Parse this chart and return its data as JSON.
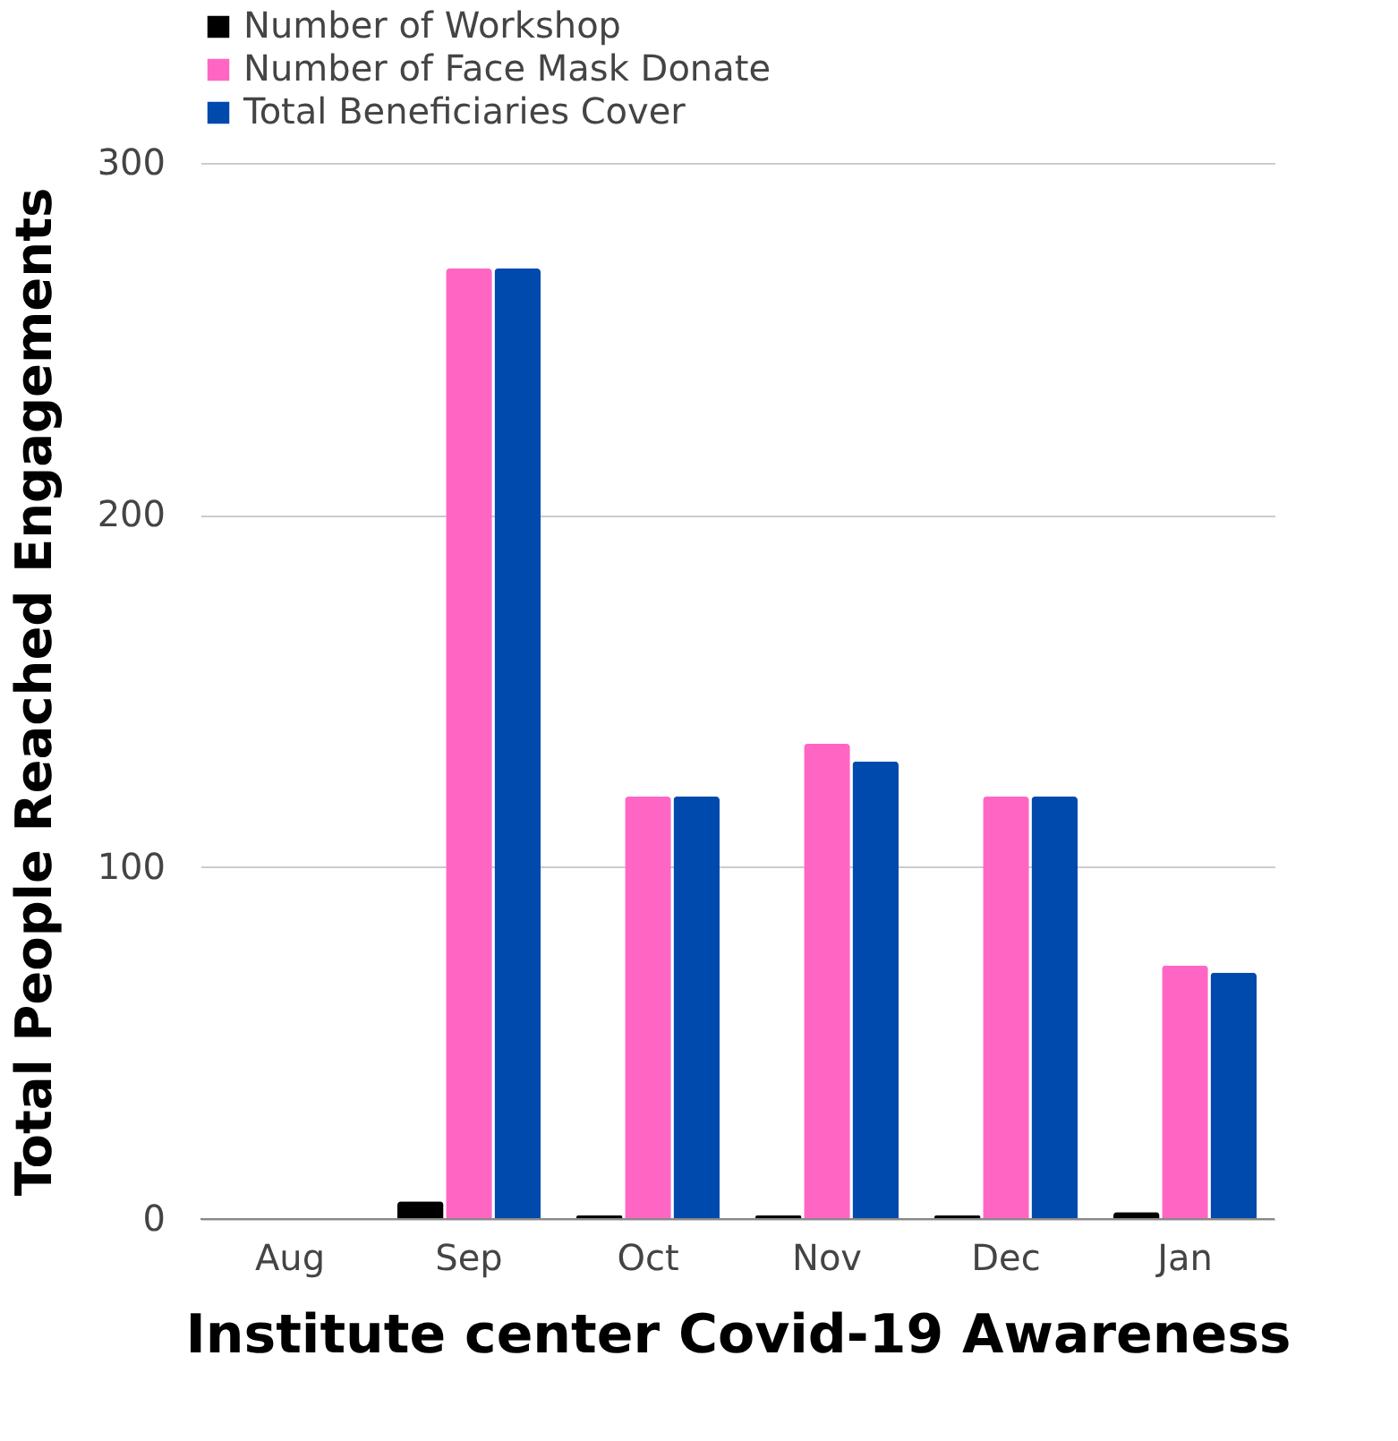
{
  "chart_data": {
    "type": "bar",
    "xlabel": "Institute center    Covid-19 Awareness",
    "ylabel": "Total People Reached Engagements",
    "categories": [
      "Aug",
      "Sep",
      "Oct",
      "Nov",
      "Dec",
      "Jan"
    ],
    "series": [
      {
        "name": "Number of Workshop",
        "color": "#000000",
        "values": [
          0,
          5,
          1,
          1,
          1,
          2
        ]
      },
      {
        "name": "Number of Face Mask Donate",
        "color": "#ff66c4",
        "values": [
          0,
          270,
          120,
          135,
          120,
          72
        ]
      },
      {
        "name": "Total Beneficiaries Cover",
        "color": "#004aad",
        "values": [
          0,
          270,
          120,
          130,
          120,
          70
        ]
      }
    ],
    "ylim": [
      0,
      300
    ],
    "yticks": [
      0,
      100,
      200,
      300
    ],
    "grid": "y",
    "legend": "top"
  }
}
